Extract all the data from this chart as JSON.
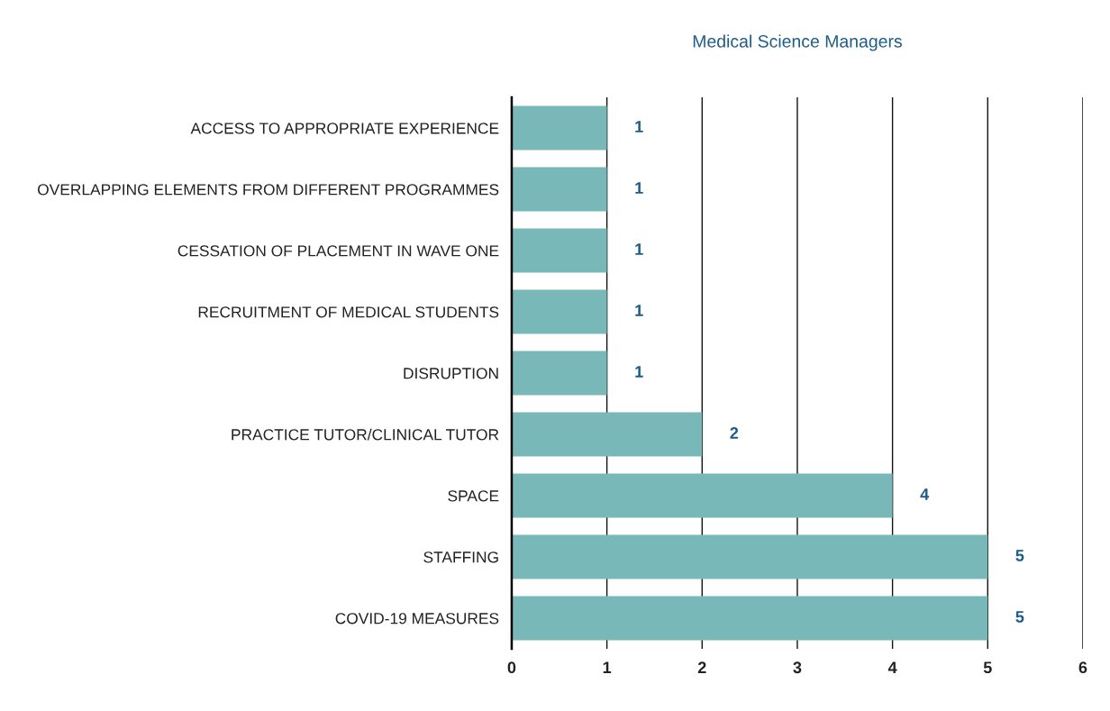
{
  "chart_data": {
    "type": "bar",
    "orientation": "horizontal",
    "title": "Medical Science Managers",
    "categories": [
      "ACCESS TO APPROPRIATE EXPERIENCE",
      "OVERLAPPING ELEMENTS FROM DIFFERENT PROGRAMMES",
      "CESSATION OF PLACEMENT IN WAVE ONE",
      "RECRUITMENT OF MEDICAL STUDENTS",
      "DISRUPTION",
      "PRACTICE TUTOR/CLINICAL TUTOR",
      "SPACE",
      "STAFFING",
      "COVID-19 MEASURES"
    ],
    "values": [
      1,
      1,
      1,
      1,
      1,
      2,
      4,
      5,
      5
    ],
    "color": "#79b8b9",
    "xlim": [
      0,
      6
    ],
    "xticks": [
      0,
      1,
      2,
      3,
      4,
      5,
      6
    ],
    "grid": "x",
    "data_labels": true,
    "legend": false
  }
}
